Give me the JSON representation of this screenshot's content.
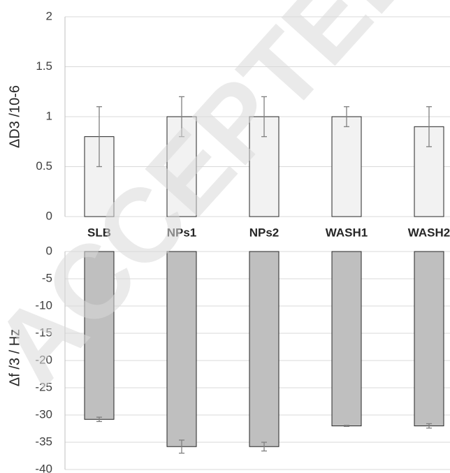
{
  "watermark": "ACCEPTED",
  "chart_data": [
    {
      "type": "bar",
      "y_label": "ΔD3 /10-6",
      "categories": [
        "SLB",
        "NPs1",
        "NPs2",
        "WASH1",
        "WASH2"
      ],
      "values": [
        0.8,
        1,
        1,
        1,
        0.9
      ],
      "errors": [
        0.3,
        0.2,
        0.2,
        0.1,
        0.2
      ],
      "color": "#f2f2f2",
      "ylim": [
        0,
        2
      ],
      "yticks": [
        0,
        0.5,
        1,
        1.5,
        2
      ],
      "grid": true
    },
    {
      "type": "bar",
      "y_label": "Δf /3 / Hz",
      "categories": [
        null,
        null,
        null,
        null,
        null
      ],
      "values": [
        -30.8,
        -35.8,
        -35.8,
        -32,
        -32
      ],
      "errors": [
        0.4,
        1.2,
        0.8,
        0.1,
        0.4
      ],
      "color": "#bfbfbf",
      "ylim": [
        -40,
        0
      ],
      "yticks": [
        0,
        -5,
        -10,
        -15,
        -20,
        -25,
        -30,
        -35,
        -40
      ],
      "grid": true
    }
  ]
}
